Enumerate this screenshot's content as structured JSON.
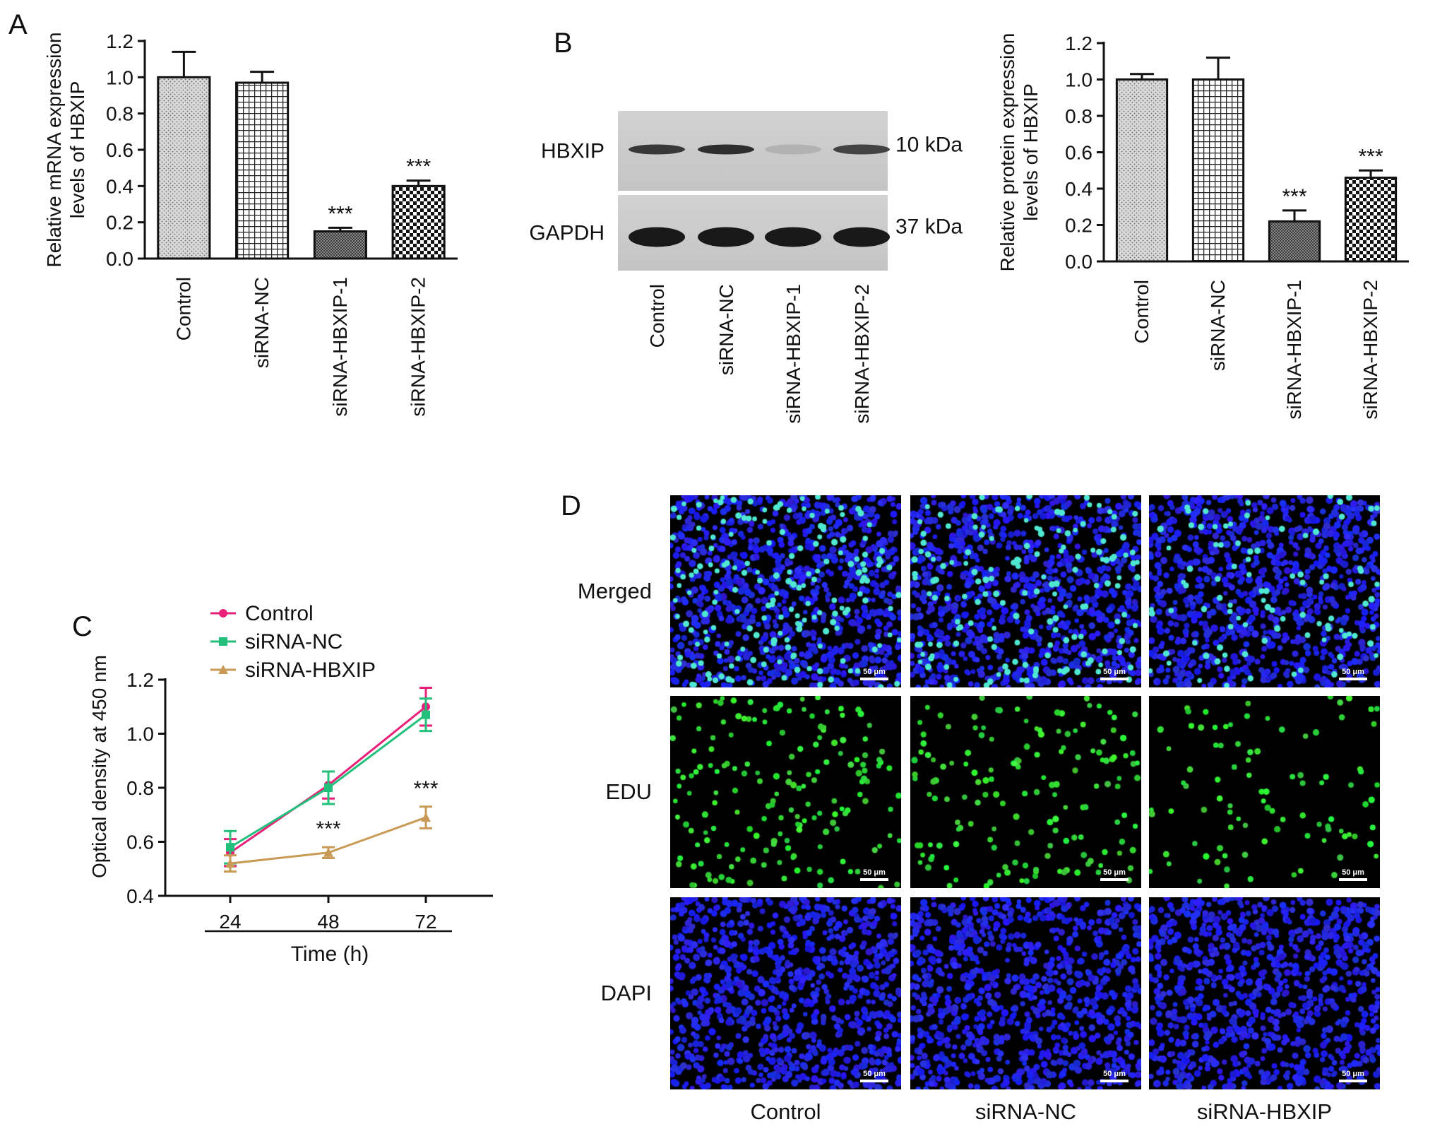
{
  "panels": {
    "A": "A",
    "B": "B",
    "C": "C",
    "D": "D"
  },
  "chart_data": [
    {
      "id": "A",
      "type": "bar",
      "categories": [
        "Control",
        "siRNA-NC",
        "siRNA-HBXIP-1",
        "siRNA-HBXIP-2"
      ],
      "values": [
        1.0,
        0.97,
        0.15,
        0.4
      ],
      "errors": [
        0.14,
        0.06,
        0.02,
        0.03
      ],
      "significance": [
        "",
        "",
        "***",
        "***"
      ],
      "ylabel": "Relative mRNA expression levels of HBXIP",
      "ylabel_lines": [
        "Relative mRNA expression",
        "levels of HBXIP"
      ],
      "ylim": [
        0,
        1.2
      ],
      "yticks": [
        "0.0",
        "0.2",
        "0.4",
        "0.6",
        "0.8",
        "1.0",
        "1.2"
      ],
      "patterns": [
        "dots",
        "grid",
        "fine",
        "checker"
      ]
    },
    {
      "id": "B",
      "type": "bar",
      "categories": [
        "Control",
        "siRNA-NC",
        "siRNA-HBXIP-1",
        "siRNA-HBXIP-2"
      ],
      "values": [
        1.0,
        1.0,
        0.22,
        0.46
      ],
      "errors": [
        0.03,
        0.12,
        0.06,
        0.04
      ],
      "significance": [
        "",
        "",
        "***",
        "***"
      ],
      "ylabel": "Relative protein expression levels of HBXIP",
      "ylabel_lines": [
        "Relative protein expression",
        "levels of HBXIP"
      ],
      "ylim": [
        0,
        1.2
      ],
      "yticks": [
        "0.0",
        "0.2",
        "0.4",
        "0.6",
        "0.8",
        "1.0",
        "1.2"
      ],
      "patterns": [
        "dots",
        "grid",
        "fine",
        "checker"
      ]
    },
    {
      "id": "C",
      "type": "line",
      "x": [
        "24",
        "48",
        "72"
      ],
      "series": [
        {
          "name": "Control",
          "values": [
            0.56,
            0.81,
            1.1
          ],
          "errors": [
            0.05,
            0.05,
            0.07
          ],
          "color": "#e8207a",
          "marker": "circle"
        },
        {
          "name": "siRNA-NC",
          "values": [
            0.58,
            0.8,
            1.07
          ],
          "errors": [
            0.06,
            0.06,
            0.06
          ],
          "color": "#22c07a",
          "marker": "square"
        },
        {
          "name": "siRNA-HBXIP",
          "values": [
            0.52,
            0.56,
            0.69
          ],
          "errors": [
            0.03,
            0.02,
            0.04
          ],
          "color": "#c99a55",
          "marker": "triangle"
        }
      ],
      "significance": [
        "",
        "***",
        "***"
      ],
      "xlabel": "Time (h)",
      "ylabel": "Optical density at 450 nm",
      "ylim": [
        0.4,
        1.2
      ],
      "yticks": [
        "0.4",
        "0.6",
        "0.8",
        "1.0",
        "1.2"
      ],
      "legend": "top-left"
    }
  ],
  "western_blot": {
    "bands": [
      {
        "label": "HBXIP",
        "size": "10 kDa",
        "intensities": [
          0.85,
          0.9,
          0.25,
          0.8
        ]
      },
      {
        "label": "GAPDH",
        "size": "37 kDa",
        "intensities": [
          1.0,
          1.0,
          1.0,
          1.0
        ]
      }
    ],
    "lanes": [
      "Control",
      "siRNA-NC",
      "siRNA-HBXIP-1",
      "siRNA-HBXIP-2"
    ]
  },
  "microscopy": {
    "rows": [
      "Merged",
      "EDU",
      "DAPI"
    ],
    "columns": [
      "Control",
      "siRNA-NC",
      "siRNA-HBXIP"
    ],
    "scale_bar": "50 μm",
    "edu_density": [
      0.55,
      0.5,
      0.3
    ]
  }
}
